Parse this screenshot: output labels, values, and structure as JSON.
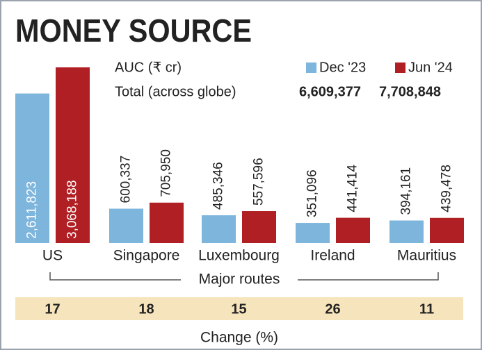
{
  "chart_data": {
    "type": "bar",
    "title": "MONEY SOURCE",
    "unit_label": "AUC (₹ cr)",
    "total_label": "Total (across globe)",
    "categories": [
      "US",
      "Singapore",
      "Luxembourg",
      "Ireland",
      "Mauritius"
    ],
    "group_label": "Major routes",
    "series": [
      {
        "name": "Dec '23",
        "color": "#7db5dc",
        "values": [
          2611823,
          600337,
          485346,
          351096,
          394161
        ],
        "value_labels": [
          "2,611,823",
          "600,337",
          "485,346",
          "351,096",
          "394,161"
        ],
        "total": {
          "value": 6609377,
          "label": "6,609,377"
        }
      },
      {
        "name": "Jun '24",
        "color": "#b01f24",
        "values": [
          3068188,
          705950,
          557596,
          441414,
          439478
        ],
        "value_labels": [
          "3,068,188",
          "705,950",
          "557,596",
          "441,414",
          "439,478"
        ],
        "total": {
          "value": 7708848,
          "label": "7,708,848"
        }
      }
    ],
    "change": {
      "label": "Change (%)",
      "values": [
        17,
        18,
        15,
        26,
        11
      ]
    }
  }
}
